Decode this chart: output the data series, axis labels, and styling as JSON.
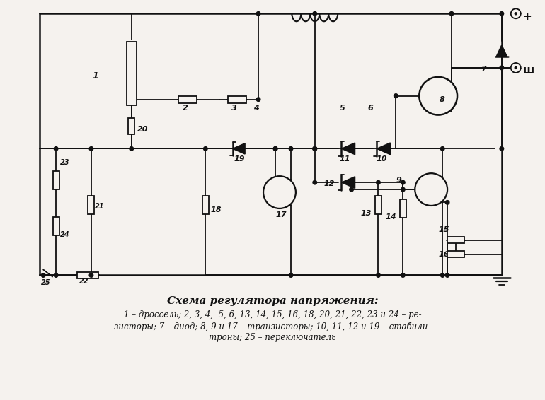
{
  "title": "Схема регулятора напряжения:",
  "caption_line1": "1 – дроссель; 2, 3, 4,  5, 6, 13, 14, 15, 16, 18, 20, 21, 22, 23 и 24 – ре-",
  "caption_line2": "зисторы; 7 – диод; 8, 9 и 17 – транзисторы; 10, 11, 12 и 19 – стабили-",
  "caption_line3": "троны; 25 – переключатель",
  "bg_color": "#f5f2ee",
  "line_color": "#111111",
  "title_fontsize": 11,
  "caption_fontsize": 8.5
}
